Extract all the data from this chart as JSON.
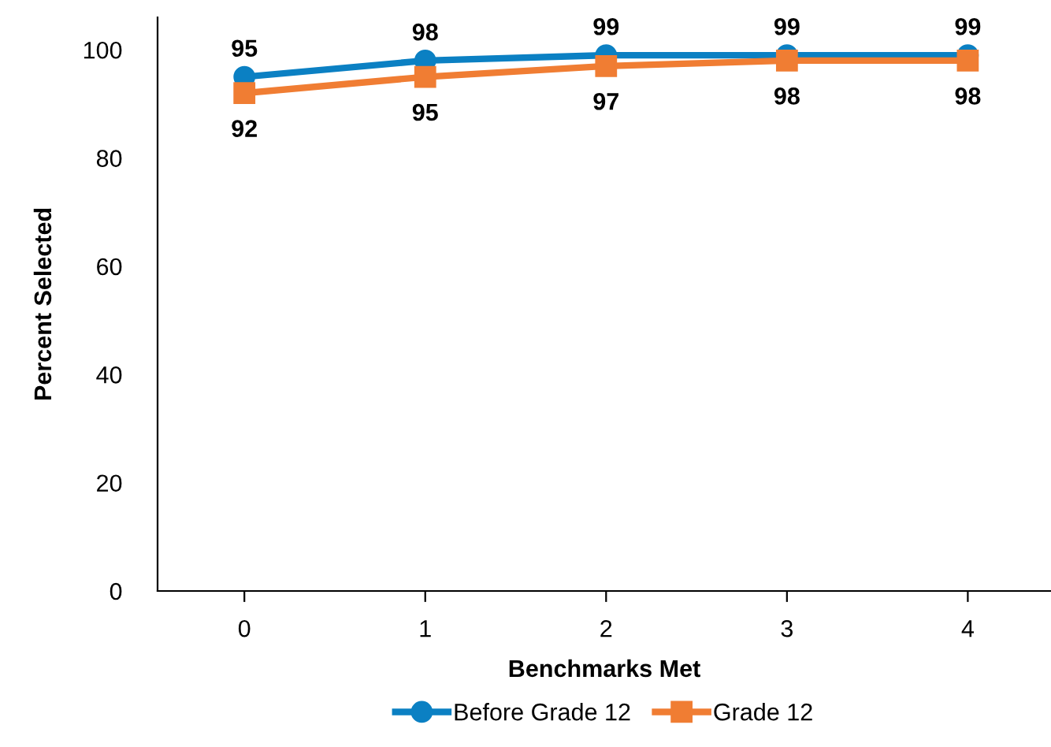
{
  "chart_data": {
    "type": "line",
    "xlabel": "Benchmarks Met",
    "ylabel": "Percent Selected",
    "categories": [
      "0",
      "1",
      "2",
      "3",
      "4"
    ],
    "series": [
      {
        "name": "Before Grade 12",
        "color": "#0b80c3",
        "marker": "circle",
        "values": [
          95,
          98,
          99,
          99,
          99
        ]
      },
      {
        "name": "Grade 12",
        "color": "#f07d33",
        "marker": "square",
        "values": [
          92,
          95,
          97,
          98,
          98
        ]
      }
    ],
    "ylim": [
      0,
      106
    ],
    "yticks": [
      0,
      20,
      40,
      60,
      80,
      100
    ],
    "grid": false,
    "legend": "bottom",
    "data_labels": true,
    "line_style": "solid"
  }
}
